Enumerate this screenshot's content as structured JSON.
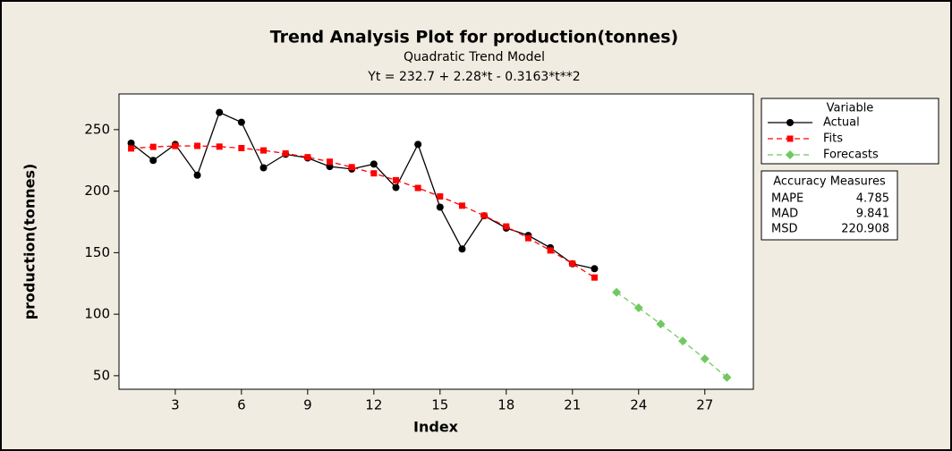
{
  "chart_data": {
    "type": "line",
    "title": "Trend Analysis Plot for production(tonnes)",
    "subtitle": "Quadratic Trend Model",
    "equation": "Yt = 232.7 + 2.28*t - 0.3163*t**2",
    "x_label": "Index",
    "y_label": "production(tonnes)",
    "x": [
      1,
      2,
      3,
      4,
      5,
      6,
      7,
      8,
      9,
      10,
      11,
      12,
      13,
      14,
      15,
      16,
      17,
      18,
      19,
      20,
      21,
      22,
      23,
      24,
      25,
      26,
      27,
      28
    ],
    "series": [
      {
        "name": "Actual",
        "color": "#000000",
        "marker": "circle",
        "line_style": "solid",
        "values": [
          239,
          225,
          238,
          213,
          264,
          256,
          219,
          230,
          227,
          220,
          218,
          222,
          203,
          238,
          187,
          153,
          180,
          170,
          164,
          154,
          141,
          137,
          null,
          null,
          null,
          null,
          null,
          null
        ]
      },
      {
        "name": "Fits",
        "color": "#ff0000",
        "marker": "square",
        "line_style": "dashed",
        "values": [
          234.7,
          236.0,
          236.7,
          236.8,
          236.2,
          235.0,
          233.1,
          230.7,
          227.6,
          223.9,
          219.5,
          214.5,
          208.9,
          202.6,
          195.7,
          188.2,
          180.1,
          171.3,
          161.8,
          151.8,
          141.1,
          129.8,
          null,
          null,
          null,
          null,
          null,
          null
        ]
      },
      {
        "name": "Forecasts",
        "color": "#70c860",
        "marker": "diamond",
        "line_style": "dashed",
        "values": [
          null,
          null,
          null,
          null,
          null,
          null,
          null,
          null,
          null,
          null,
          null,
          null,
          null,
          null,
          null,
          null,
          null,
          null,
          null,
          null,
          null,
          null,
          117.8,
          105.2,
          92.0,
          78.2,
          63.7,
          48.6
        ]
      }
    ],
    "legend_title": "Variable",
    "xlim": [
      0.45,
      29.2
    ],
    "xticks": [
      3,
      6,
      9,
      12,
      15,
      18,
      21,
      24,
      27
    ],
    "ylim": [
      39,
      279
    ],
    "yticks": [
      50,
      100,
      150,
      200,
      250
    ],
    "accuracy_measures": {
      "title": "Accuracy Measures",
      "rows": [
        [
          "MAPE",
          "4.785"
        ],
        [
          "MAD",
          "9.841"
        ],
        [
          "MSD",
          "220.908"
        ]
      ]
    }
  }
}
